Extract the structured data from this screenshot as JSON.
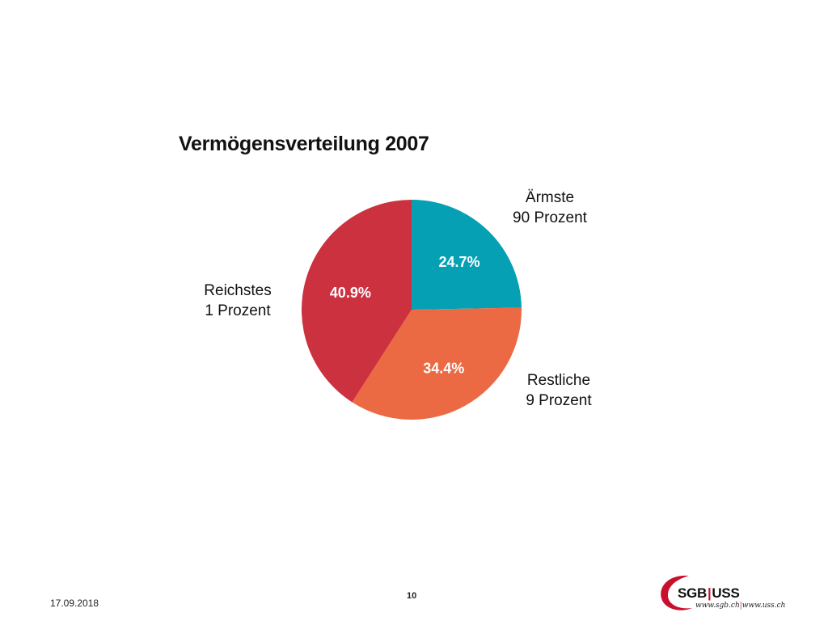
{
  "slide": {
    "date": "17.09.2018",
    "page_number": "10"
  },
  "logo": {
    "name_left": "SGB",
    "separator": "|",
    "name_right": "USS",
    "url_left": "www.sgb.ch",
    "url_right": "www.uss.ch",
    "color": "#c8102e"
  },
  "chart_data": {
    "type": "pie",
    "title": "Vermögensverteilung 2007",
    "categories": [
      {
        "line1": "Ärmste",
        "line2": "90 Prozent"
      },
      {
        "line1": "Restliche",
        "line2": "9 Prozent"
      },
      {
        "line1": "Reichstes",
        "line2": "1 Prozent"
      }
    ],
    "values": [
      24.7,
      34.4,
      40.9
    ],
    "value_labels": [
      "24.7%",
      "34.4%",
      "40.9%"
    ],
    "colors": [
      "#05a0b3",
      "#ec6a43",
      "#cc3140"
    ],
    "start_angle": "12 o'clock, clockwise"
  }
}
